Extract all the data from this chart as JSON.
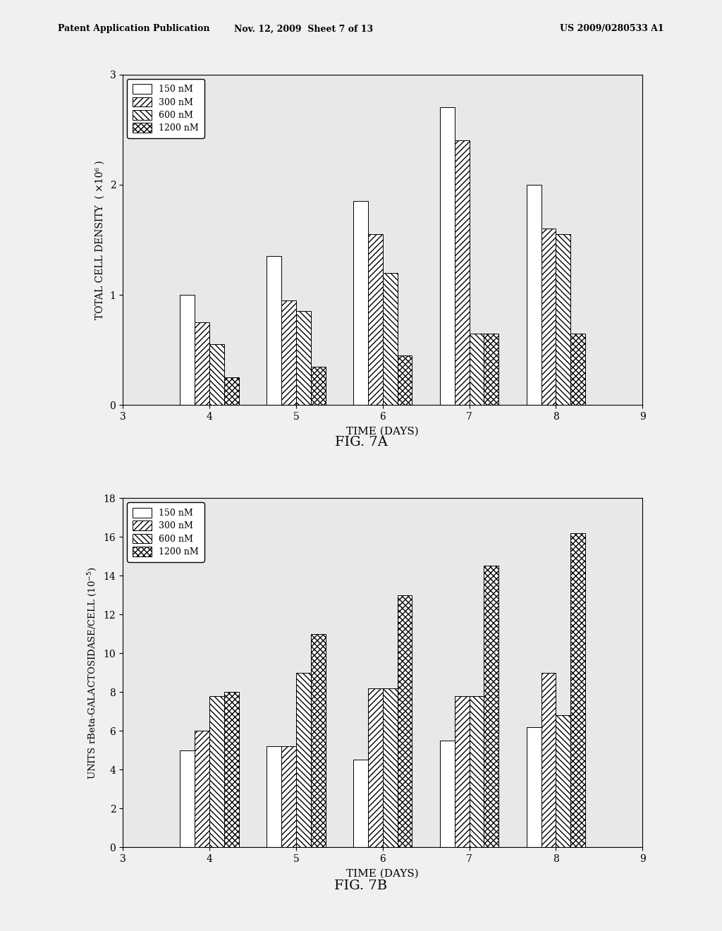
{
  "fig7a": {
    "title": "FIG. 7A",
    "ylabel": "TOTAL CELL DENSITY  ( ×10⁶ )",
    "xlabel": "TIME (DAYS)",
    "days": [
      4,
      5,
      6,
      7,
      8
    ],
    "ylim": [
      0,
      3
    ],
    "yticks": [
      0,
      1,
      2,
      3
    ],
    "xlim": [
      3,
      9
    ],
    "xticks": [
      3,
      4,
      5,
      6,
      7,
      8,
      9
    ],
    "series": {
      "150nM": [
        1.0,
        1.35,
        1.85,
        2.7,
        2.0
      ],
      "300nM": [
        0.75,
        0.95,
        1.55,
        2.4,
        1.6
      ],
      "600nM": [
        0.55,
        0.85,
        1.2,
        0.65,
        1.55
      ],
      "1200nM": [
        0.25,
        0.35,
        0.45,
        0.65,
        0.65
      ]
    }
  },
  "fig7b": {
    "title": "FIG. 7B",
    "xlabel": "TIME (DAYS)",
    "days": [
      4,
      5,
      6,
      7,
      8
    ],
    "ylim": [
      0,
      18
    ],
    "yticks": [
      0,
      2,
      4,
      6,
      8,
      10,
      12,
      14,
      16,
      18
    ],
    "xlim": [
      3,
      9
    ],
    "xticks": [
      3,
      4,
      5,
      6,
      7,
      8,
      9
    ],
    "series": {
      "150nM": [
        5.0,
        5.2,
        4.5,
        5.5,
        6.2
      ],
      "300nM": [
        6.0,
        5.2,
        8.2,
        7.8,
        9.0
      ],
      "600nM": [
        7.8,
        9.0,
        8.2,
        7.8,
        6.8
      ],
      "1200nM": [
        8.0,
        11.0,
        13.0,
        14.5,
        16.2
      ]
    }
  },
  "legend_labels": [
    "150 nM",
    "300 nM",
    "600 nM",
    "1200 nM"
  ],
  "header_left": "Patent Application Publication",
  "header_mid": "Nov. 12, 2009  Sheet 7 of 13",
  "header_right": "US 2009/0280533 A1",
  "background_color": "#f0f0f0",
  "plot_bg": "#e8e8e8",
  "bar_width": 0.17
}
